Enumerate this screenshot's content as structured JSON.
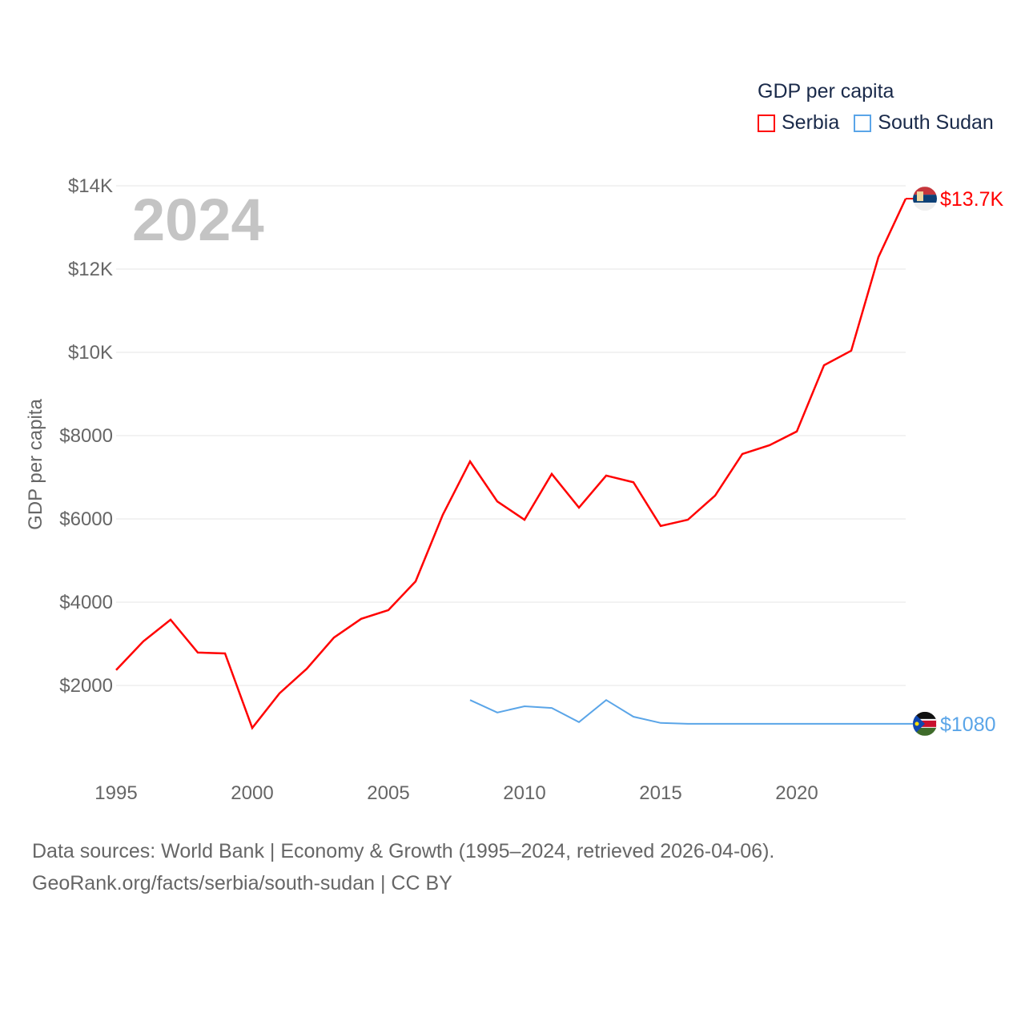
{
  "chart_data": {
    "type": "line",
    "title": "GDP per capita",
    "ylabel": "GDP per capita",
    "xlabel": "",
    "year_label": "2024",
    "ylim": [
      0,
      14000
    ],
    "xlim": [
      1995,
      2024
    ],
    "yticks": [
      {
        "v": 2000,
        "label": "$2000"
      },
      {
        "v": 4000,
        "label": "$4000"
      },
      {
        "v": 6000,
        "label": "$6000"
      },
      {
        "v": 8000,
        "label": "$8000"
      },
      {
        "v": 10000,
        "label": "$10K"
      },
      {
        "v": 12000,
        "label": "$12K"
      },
      {
        "v": 14000,
        "label": "$14K"
      }
    ],
    "xticks": [
      {
        "v": 1995,
        "label": "1995"
      },
      {
        "v": 2000,
        "label": "2000"
      },
      {
        "v": 2005,
        "label": "2005"
      },
      {
        "v": 2010,
        "label": "2010"
      },
      {
        "v": 2015,
        "label": "2015"
      },
      {
        "v": 2020,
        "label": "2020"
      }
    ],
    "grid": true,
    "legend_position": "top-right",
    "series": [
      {
        "name": "Serbia",
        "color": "#ff0000",
        "end_label": "$13.7K",
        "x": [
          1995,
          1996,
          1997,
          1998,
          1999,
          2000,
          2001,
          2002,
          2003,
          2004,
          2005,
          2006,
          2007,
          2008,
          2009,
          2010,
          2011,
          2012,
          2013,
          2014,
          2015,
          2016,
          2017,
          2018,
          2019,
          2020,
          2021,
          2022,
          2023,
          2024
        ],
        "values": [
          2370,
          3060,
          3580,
          2790,
          2770,
          980,
          1810,
          2400,
          3150,
          3600,
          3810,
          4500,
          6100,
          7380,
          6420,
          5980,
          7080,
          6270,
          7040,
          6880,
          5830,
          5980,
          6560,
          7560,
          7770,
          8100,
          9690,
          10040,
          12290,
          13690
        ]
      },
      {
        "name": "South Sudan",
        "color": "#5aa5e8",
        "end_label": "$1080",
        "x": [
          2008,
          2009,
          2010,
          2011,
          2012,
          2013,
          2014,
          2015,
          2016,
          2017,
          2018,
          2019,
          2020,
          2021,
          2022,
          2023,
          2024
        ],
        "values": [
          1650,
          1350,
          1500,
          1460,
          1120,
          1650,
          1250,
          1100,
          1080,
          1080,
          1080,
          1080,
          1080,
          1080,
          1080,
          1080,
          1080
        ]
      }
    ]
  },
  "footer": {
    "line1": "Data sources: World Bank | Economy & Growth (1995–2024, retrieved 2026-04-06).",
    "line2": "GeoRank.org/facts/serbia/south-sudan | CC BY"
  }
}
